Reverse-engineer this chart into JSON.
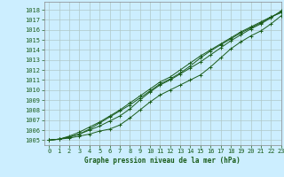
{
  "title": "Graphe pression niveau de la mer (hPa)",
  "bg_color": "#cceeff",
  "grid_color": "#b0c8c8",
  "line_color": "#1a5c1a",
  "xlim": [
    -0.5,
    23
  ],
  "ylim": [
    1004.5,
    1018.8
  ],
  "yticks": [
    1005,
    1006,
    1007,
    1008,
    1009,
    1010,
    1011,
    1012,
    1013,
    1014,
    1015,
    1016,
    1017,
    1018
  ],
  "xticks": [
    0,
    1,
    2,
    3,
    4,
    5,
    6,
    7,
    8,
    9,
    10,
    11,
    12,
    13,
    14,
    15,
    16,
    17,
    18,
    19,
    20,
    21,
    22,
    23
  ],
  "series": [
    [
      1005.0,
      1005.1,
      1005.2,
      1005.4,
      1005.6,
      1005.9,
      1006.1,
      1006.5,
      1007.2,
      1008.0,
      1008.8,
      1009.5,
      1010.0,
      1010.5,
      1011.0,
      1011.5,
      1012.3,
      1013.2,
      1014.1,
      1014.8,
      1015.4,
      1015.9,
      1016.6,
      1017.4
    ],
    [
      1005.0,
      1005.1,
      1005.3,
      1005.6,
      1006.0,
      1006.4,
      1006.9,
      1007.4,
      1008.1,
      1009.0,
      1009.8,
      1010.5,
      1011.0,
      1011.6,
      1012.2,
      1012.8,
      1013.5,
      1014.2,
      1014.9,
      1015.5,
      1016.1,
      1016.6,
      1017.2,
      1017.9
    ],
    [
      1005.0,
      1005.1,
      1005.4,
      1005.8,
      1006.3,
      1006.8,
      1007.4,
      1008.0,
      1008.7,
      1009.4,
      1010.1,
      1010.8,
      1011.3,
      1012.0,
      1012.7,
      1013.4,
      1014.0,
      1014.6,
      1015.2,
      1015.8,
      1016.3,
      1016.8,
      1017.3,
      1017.8
    ],
    [
      1005.0,
      1005.1,
      1005.3,
      1005.6,
      1006.1,
      1006.7,
      1007.3,
      1007.9,
      1008.5,
      1009.2,
      1009.9,
      1010.6,
      1011.1,
      1011.7,
      1012.4,
      1013.2,
      1013.9,
      1014.5,
      1015.1,
      1015.7,
      1016.2,
      1016.7,
      1017.3,
      1017.7
    ]
  ]
}
